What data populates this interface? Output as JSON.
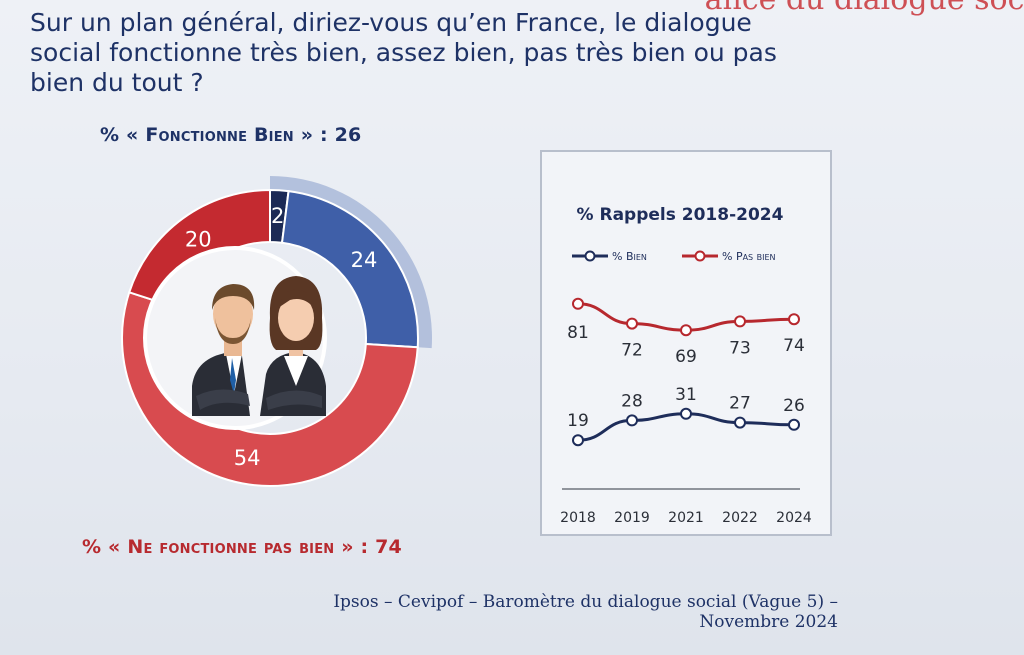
{
  "background_text": "ance du dialogue soci",
  "question": "Sur un plan général, diriez-vous qu’en France, le dialogue social fonctionne très bien, assez bien, pas très bien ou pas bien du tout ?",
  "good_summary": "% « Fonctionne Bien » : 26",
  "bad_summary": "% « Ne fonctionne pas bien » : 74",
  "source_line1": "Ipsos – Cevipof – Baromètre du dialogue social (Vague 5) –",
  "source_line2": "Novembre 2024",
  "colors": {
    "very_good": "#1c2a55",
    "fairly_good": "#3f5fa8",
    "not_very_good": "#d84b4f",
    "not_at_all": "#c42a30",
    "highlight_arc": "#a9b8d8",
    "bien_line": "#1e2d5a",
    "pas_bien_line": "#b7282e"
  },
  "chart_data": [
    {
      "type": "pie",
      "variant": "donut",
      "values": [
        2,
        24,
        54,
        20
      ],
      "labels": [
        "2",
        "24",
        "54",
        "20"
      ],
      "segment_colors": [
        "very_good",
        "fairly_good",
        "not_very_good",
        "not_at_all"
      ],
      "highlighted_group": "Fonctionne bien (2 + 24 = 26)"
    },
    {
      "type": "line",
      "title": "% Rappels 2018-2024",
      "x": [
        "2018",
        "2019",
        "2021",
        "2022",
        "2024"
      ],
      "ylim": [
        0,
        100
      ],
      "legend_position": "top",
      "series": [
        {
          "name": "% Bien",
          "values": [
            19,
            28,
            31,
            27,
            26
          ],
          "color_key": "bien_line"
        },
        {
          "name": "% Pas bien",
          "values": [
            81,
            72,
            69,
            73,
            74
          ],
          "color_key": "pas_bien_line"
        }
      ]
    }
  ]
}
